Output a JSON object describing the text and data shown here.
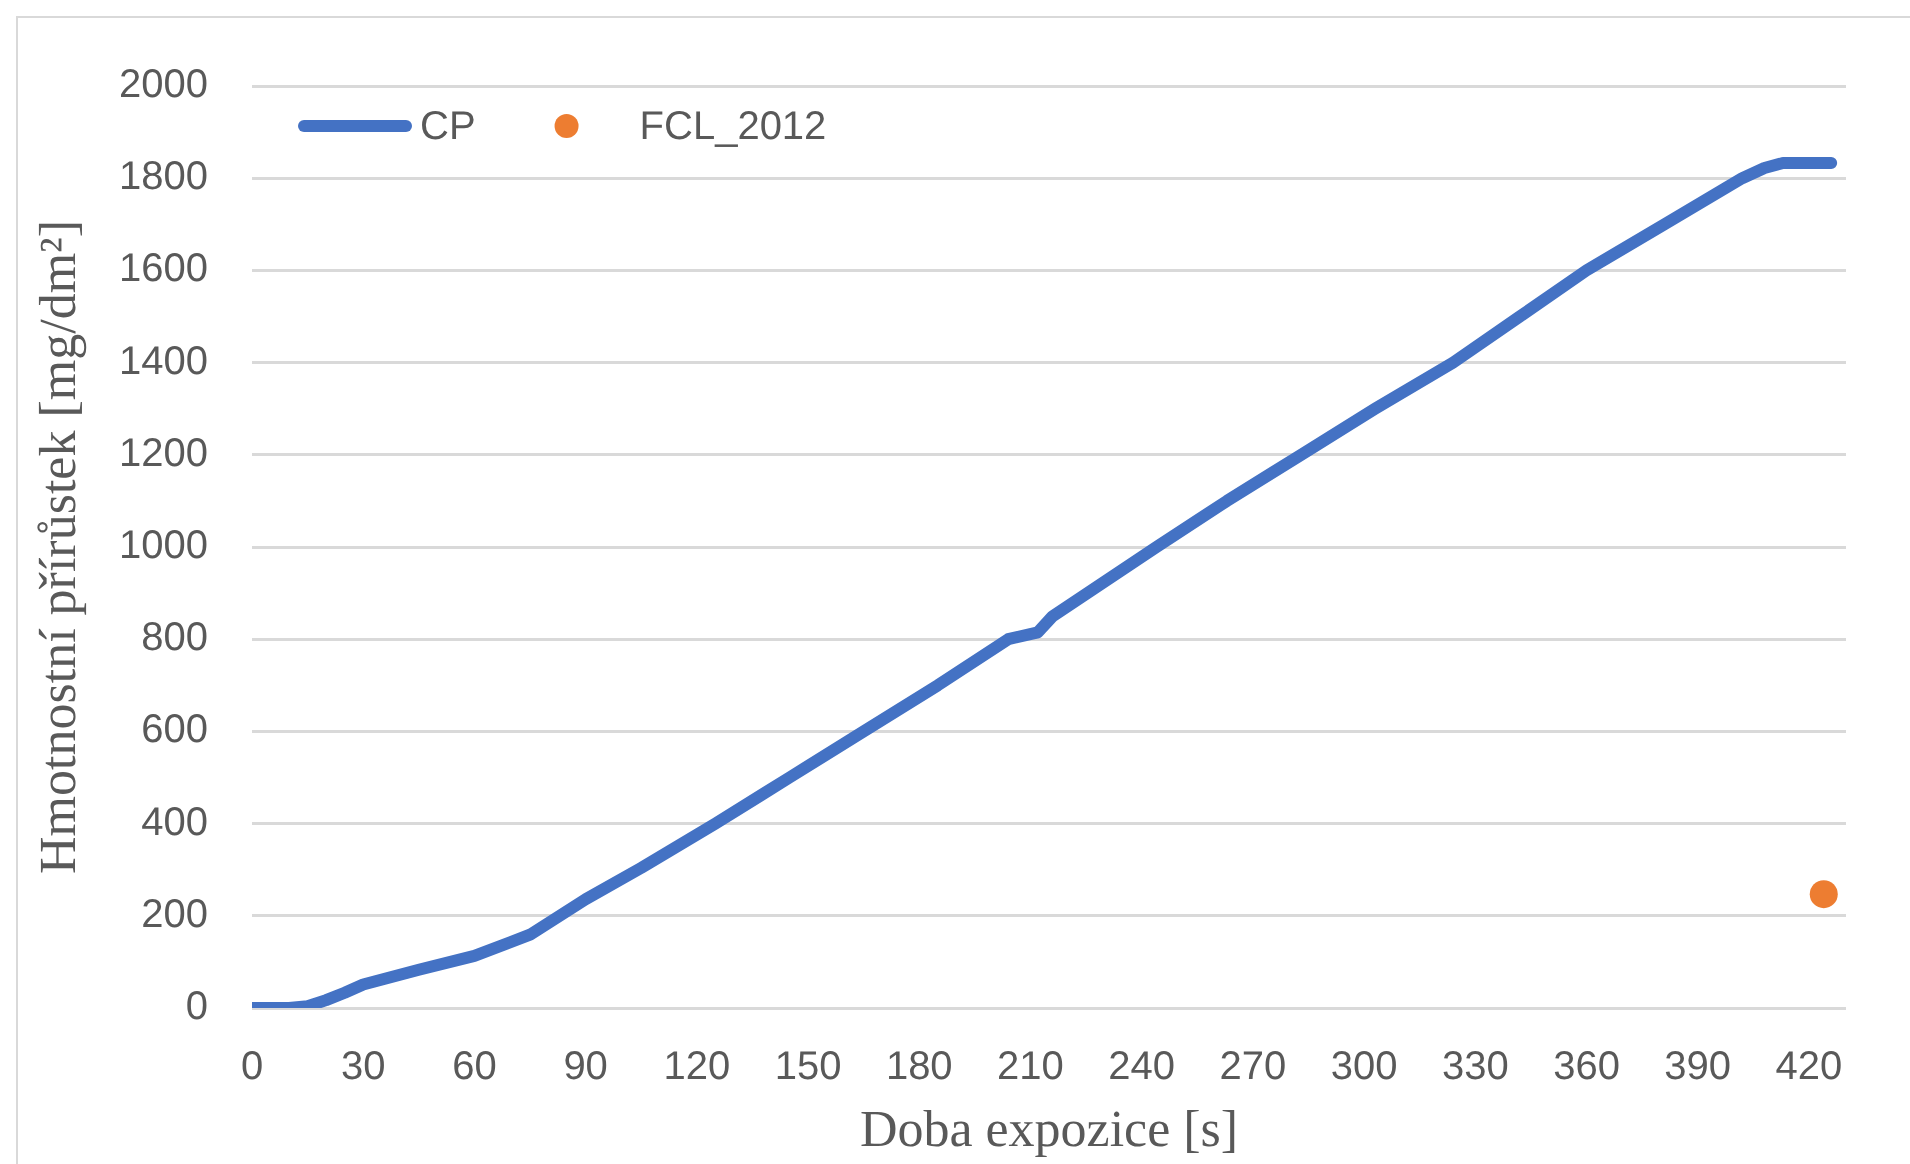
{
  "chart_data": {
    "type": "line",
    "xlabel": "Doba expozice [s]",
    "ylabel": "Hmotnostní přírůstek [mg/dm²]",
    "xlim": [
      0,
      430
    ],
    "xticks": [
      0,
      30,
      60,
      90,
      120,
      150,
      180,
      210,
      240,
      270,
      300,
      330,
      360,
      390,
      420
    ],
    "ylim": [
      0,
      2000
    ],
    "yticks": [
      0,
      200,
      400,
      600,
      800,
      1000,
      1200,
      1400,
      1600,
      1800,
      2000
    ],
    "grid": "y",
    "legend": "top left",
    "series": [
      {
        "name": "CP",
        "type": "line",
        "color": "#4472c4",
        "marker": "none",
        "line_style": "solid",
        "x": [
          0,
          10,
          15,
          20,
          25,
          30,
          45,
          60,
          75,
          90,
          105,
          125,
          145,
          165,
          185,
          204,
          212,
          216,
          244,
          263,
          283,
          303,
          324,
          342,
          360,
          381,
          402,
          408,
          413,
          426
        ],
        "values": [
          0,
          0,
          4,
          17,
          33,
          51,
          83,
          113,
          159,
          236,
          304,
          400,
          500,
          600,
          700,
          800,
          815,
          850,
          1000,
          1100,
          1200,
          1300,
          1400,
          1500,
          1600,
          1700,
          1800,
          1822,
          1833,
          1833
        ]
      },
      {
        "name": "FCL_2012",
        "type": "scatter",
        "color": "#ed7d31",
        "marker": "circle",
        "x": [
          424
        ],
        "values": [
          247
        ]
      }
    ]
  }
}
